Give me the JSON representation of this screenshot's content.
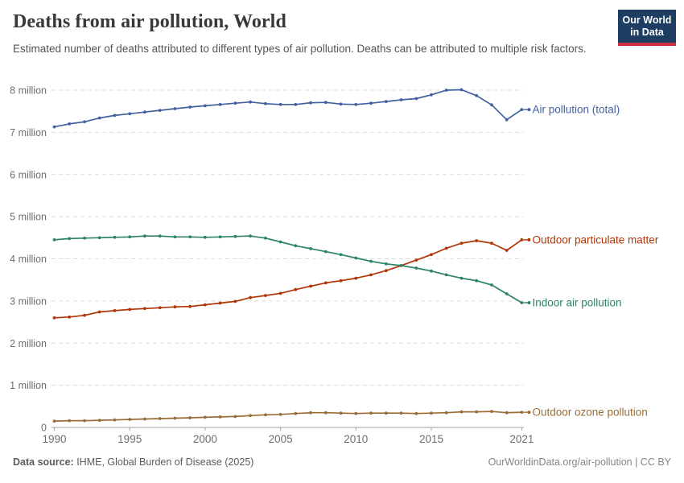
{
  "header": {
    "title": "Deaths from air pollution, World",
    "subtitle": "Estimated number of deaths attributed to different types of air pollution. Deaths can be attributed to multiple risk factors."
  },
  "logo": {
    "line1": "Our World",
    "line2": "in Data",
    "bg_color": "#1d3d63",
    "accent_color": "#cf2e41"
  },
  "footer": {
    "source_label": "Data source:",
    "source_text": " IHME, Global Burden of Disease (2025)",
    "credit": "OurWorldinData.org/air-pollution | CC BY"
  },
  "chart_data": {
    "type": "line",
    "title": "Deaths from air pollution, World",
    "xlabel": "",
    "ylabel": "",
    "unit": "deaths (millions)",
    "grid": "horizontal-dashed",
    "legend_position": "right-end-labels",
    "ylim": [
      0,
      8.4
    ],
    "x": [
      1990,
      1991,
      1992,
      1993,
      1994,
      1995,
      1996,
      1997,
      1998,
      1999,
      2000,
      2001,
      2002,
      2003,
      2004,
      2005,
      2006,
      2007,
      2008,
      2009,
      2010,
      2011,
      2012,
      2013,
      2014,
      2015,
      2016,
      2017,
      2018,
      2019,
      2020,
      2021
    ],
    "x_ticks": [
      1990,
      1995,
      2000,
      2005,
      2010,
      2015,
      2021
    ],
    "y_ticks": [
      {
        "value": 0,
        "label": "0"
      },
      {
        "value": 1,
        "label": "1 million"
      },
      {
        "value": 2,
        "label": "2 million"
      },
      {
        "value": 3,
        "label": "3 million"
      },
      {
        "value": 4,
        "label": "4 million"
      },
      {
        "value": 5,
        "label": "5 million"
      },
      {
        "value": 6,
        "label": "6 million"
      },
      {
        "value": 7,
        "label": "7 million"
      },
      {
        "value": 8,
        "label": "8 million"
      }
    ],
    "series": [
      {
        "name": "Air pollution (total)",
        "color": "#41619e",
        "values": [
          7.13,
          7.2,
          7.25,
          7.34,
          7.4,
          7.44,
          7.48,
          7.52,
          7.56,
          7.6,
          7.63,
          7.66,
          7.69,
          7.72,
          7.68,
          7.66,
          7.66,
          7.7,
          7.71,
          7.67,
          7.66,
          7.69,
          7.73,
          7.77,
          7.8,
          7.89,
          8.0,
          8.01,
          7.87,
          7.65,
          7.3,
          7.54
        ]
      },
      {
        "name": "Outdoor particulate matter",
        "color": "#b13507",
        "values": [
          2.6,
          2.62,
          2.66,
          2.74,
          2.77,
          2.8,
          2.82,
          2.84,
          2.86,
          2.87,
          2.91,
          2.95,
          2.99,
          3.08,
          3.13,
          3.18,
          3.27,
          3.35,
          3.43,
          3.48,
          3.54,
          3.62,
          3.72,
          3.84,
          3.97,
          4.1,
          4.25,
          4.37,
          4.43,
          4.37,
          4.2,
          4.45
        ]
      },
      {
        "name": "Indoor air pollution",
        "color": "#2c8465",
        "values": [
          4.45,
          4.48,
          4.49,
          4.5,
          4.51,
          4.52,
          4.54,
          4.54,
          4.52,
          4.52,
          4.51,
          4.52,
          4.53,
          4.54,
          4.49,
          4.4,
          4.31,
          4.24,
          4.17,
          4.1,
          4.02,
          3.94,
          3.88,
          3.84,
          3.78,
          3.71,
          3.62,
          3.54,
          3.48,
          3.38,
          3.17,
          2.96
        ]
      },
      {
        "name": "Outdoor ozone pollution",
        "color": "#996d39",
        "values": [
          0.15,
          0.16,
          0.16,
          0.17,
          0.18,
          0.19,
          0.2,
          0.21,
          0.22,
          0.23,
          0.24,
          0.25,
          0.26,
          0.28,
          0.3,
          0.31,
          0.33,
          0.35,
          0.35,
          0.34,
          0.33,
          0.34,
          0.34,
          0.34,
          0.33,
          0.34,
          0.35,
          0.37,
          0.37,
          0.38,
          0.35,
          0.36
        ]
      }
    ],
    "style": {
      "grid_color": "#dcdcdc",
      "axis_color": "#a3a3a3",
      "tick_label_color": "#6e6e6e"
    }
  }
}
